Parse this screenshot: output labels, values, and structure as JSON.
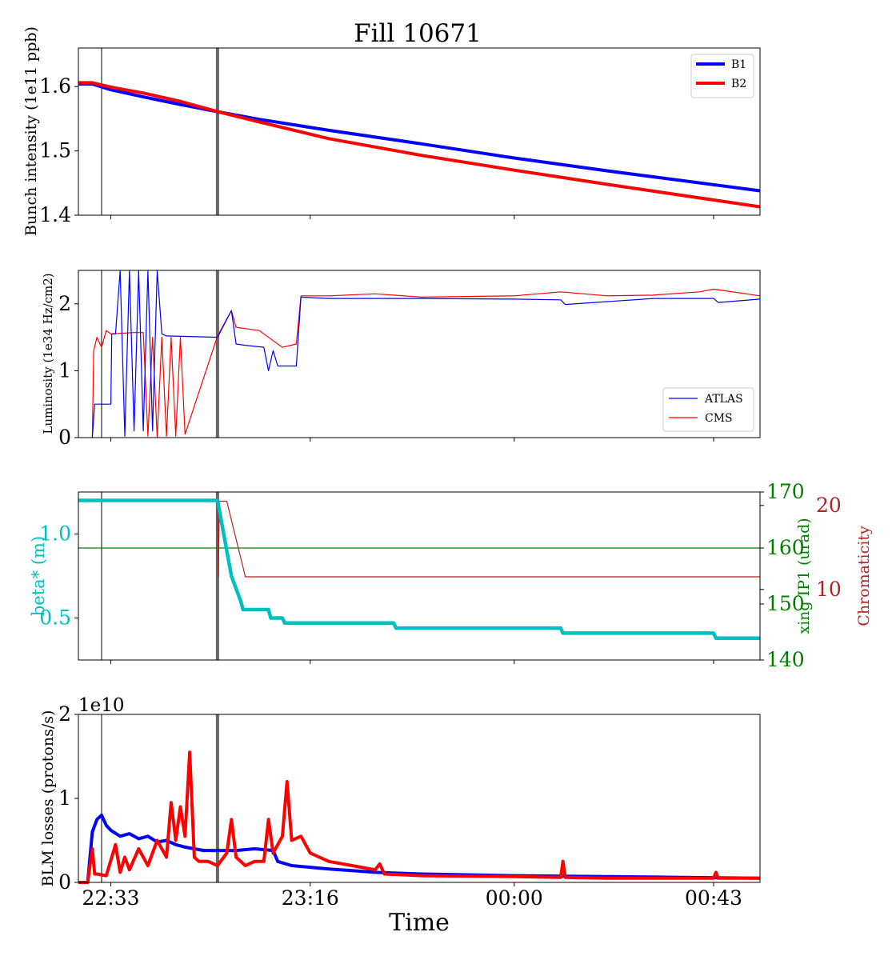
{
  "title": "Fill 10671",
  "xlabel": "Time",
  "x_ticks": [
    "22:33",
    "23:16",
    "00:00",
    "00:43"
  ],
  "colors": {
    "b1": "#0000ff",
    "b2": "#ff0000",
    "atlas": "#0000ff",
    "cms": "#ff0000",
    "beta": "#00bfbf",
    "xing": "#008000",
    "chroma": "#b22222",
    "marker": "#666666"
  },
  "chart_data": [
    {
      "type": "line",
      "ylabel": "Bunch intensity (1e11 ppb)",
      "ylim": [
        1.4,
        1.66
      ],
      "yticks": [
        "1.4",
        "1.5",
        "1.6"
      ],
      "legend": "top-right",
      "series": [
        {
          "name": "B1",
          "x": [
            "22:26",
            "22:29",
            "22:33",
            "22:40",
            "22:48",
            "22:56",
            "23:05",
            "23:20",
            "23:40",
            "00:00",
            "00:20",
            "00:53"
          ],
          "values": [
            1.604,
            1.604,
            1.595,
            1.584,
            1.572,
            1.561,
            1.549,
            1.532,
            1.511,
            1.489,
            1.469,
            1.438
          ]
        },
        {
          "name": "B2",
          "x": [
            "22:26",
            "22:29",
            "22:33",
            "22:40",
            "22:48",
            "22:56",
            "23:05",
            "23:20",
            "23:40",
            "00:00",
            "00:20",
            "00:53"
          ],
          "values": [
            1.606,
            1.606,
            1.599,
            1.59,
            1.577,
            1.561,
            1.545,
            1.519,
            1.493,
            1.47,
            1.448,
            1.413
          ]
        }
      ]
    },
    {
      "type": "line",
      "ylabel": "Luminosity (1e34 Hz/cm2)",
      "ylim": [
        0,
        2.5
      ],
      "yticks": [
        "0",
        "1",
        "2"
      ],
      "legend": "bottom-right",
      "series": [
        {
          "name": "ATLAS",
          "x": [
            "22:29",
            "22:29.5",
            "22:30",
            "22:33",
            "22:33.2",
            "22:34",
            "22:35",
            "22:36",
            "22:37",
            "22:38",
            "22:39",
            "22:40",
            "22:41",
            "22:42",
            "22:43",
            "22:44",
            "22:45",
            "22:56",
            "22:59",
            "23:00",
            "23:02",
            "23:06",
            "23:07",
            "23:08",
            "23:09",
            "23:13",
            "23:14",
            "23:20",
            "23:40",
            "00:00",
            "00:10",
            "00:11",
            "00:30",
            "00:43",
            "00:44",
            "00:53"
          ],
          "values": [
            0,
            0.5,
            0.5,
            0.5,
            1.55,
            1.55,
            2.5,
            0.02,
            2.5,
            0.1,
            2.5,
            0.1,
            2.5,
            0.1,
            2.5,
            1.55,
            1.52,
            1.5,
            1.9,
            1.4,
            1.38,
            1.35,
            1.0,
            1.3,
            1.07,
            1.07,
            2.1,
            2.08,
            2.08,
            2.07,
            2.06,
            1.99,
            2.08,
            2.08,
            2.02,
            2.07
          ]
        },
        {
          "name": "CMS",
          "x": [
            "22:29",
            "22:29.3",
            "22:30",
            "22:31",
            "22:32",
            "22:33",
            "22:38",
            "22:40",
            "22:41",
            "22:42",
            "22:43",
            "22:44",
            "22:45",
            "22:46",
            "22:47",
            "22:48",
            "22:49",
            "22:56",
            "22:59",
            "23:00",
            "23:05",
            "23:08",
            "23:10",
            "23:13",
            "23:14",
            "23:20",
            "23:30",
            "23:40",
            "00:00",
            "00:10",
            "00:20",
            "00:30",
            "00:40",
            "00:43",
            "00:53"
          ],
          "values": [
            0,
            1.3,
            1.5,
            1.35,
            1.6,
            1.55,
            1.57,
            1.57,
            0.02,
            1.5,
            0.0,
            1.5,
            0.02,
            1.5,
            0.02,
            1.5,
            0.05,
            1.52,
            1.9,
            1.65,
            1.6,
            1.45,
            1.35,
            1.4,
            2.12,
            2.12,
            2.15,
            2.1,
            2.12,
            2.18,
            2.12,
            2.13,
            2.18,
            2.22,
            2.12
          ]
        }
      ]
    },
    {
      "type": "line",
      "ylabel": "beta* (m)",
      "ylabel_right": "xing IP1 (urad)",
      "ylabel_right2": "Chromaticity",
      "yticks": [
        "0.5",
        "1.0"
      ],
      "yticks_right": [
        "140",
        "150",
        "160",
        "170"
      ],
      "yticks_right2": [
        "10",
        "20"
      ],
      "ylim": [
        0.25,
        1.25
      ],
      "ylim_right": [
        140,
        170
      ],
      "ylim_right2": [
        1.6,
        21.6
      ],
      "series": [
        {
          "name": "beta",
          "x": [
            "22:26",
            "22:56",
            "22:57",
            "22:59",
            "23:01",
            "23:01.5",
            "23:07",
            "23:07.5",
            "23:10",
            "23:10.5",
            "23:34",
            "23:34.5",
            "00:10",
            "00:10.5",
            "00:43",
            "00:43.5",
            "00:53"
          ],
          "values": [
            1.2,
            1.2,
            1.05,
            0.75,
            0.6,
            0.55,
            0.55,
            0.5,
            0.5,
            0.47,
            0.47,
            0.44,
            0.44,
            0.41,
            0.41,
            0.38,
            0.38
          ]
        },
        {
          "name": "xing",
          "x": [
            "22:26",
            "00:53"
          ],
          "values": [
            160,
            160
          ]
        },
        {
          "name": "chromaticity",
          "x": [
            "22:26",
            "22:56",
            "22:56.2",
            "22:56.4",
            "22:58",
            "23:02",
            "00:53"
          ],
          "values": [
            20.5,
            20.5,
            11.5,
            20.5,
            20.5,
            11.5,
            11.5
          ]
        }
      ]
    },
    {
      "type": "line",
      "ylabel": "BLM losses (protons/s)",
      "offset_label": "1e10",
      "ylim": [
        0,
        2
      ],
      "yticks": [
        "0",
        "1",
        "2"
      ],
      "series": [
        {
          "name": "B1",
          "x": [
            "22:26",
            "22:28",
            "22:29",
            "22:30",
            "22:31",
            "22:32",
            "22:33",
            "22:35",
            "22:37",
            "22:39",
            "22:41",
            "22:43",
            "22:45",
            "22:47",
            "22:49",
            "22:51",
            "22:53",
            "22:56",
            "23:00",
            "23:04",
            "23:08",
            "23:09",
            "23:12",
            "23:16",
            "23:20",
            "23:25",
            "23:30",
            "23:40",
            "00:00",
            "00:20",
            "00:53"
          ],
          "values": [
            0,
            0,
            0.6,
            0.75,
            0.8,
            0.68,
            0.62,
            0.55,
            0.58,
            0.52,
            0.55,
            0.48,
            0.5,
            0.45,
            0.42,
            0.4,
            0.38,
            0.38,
            0.38,
            0.4,
            0.38,
            0.25,
            0.2,
            0.18,
            0.16,
            0.14,
            0.12,
            0.1,
            0.08,
            0.07,
            0.05
          ]
        },
        {
          "name": "B2",
          "x": [
            "22:26",
            "22:28",
            "22:29",
            "22:29.5",
            "22:30",
            "22:32",
            "22:34",
            "22:35",
            "22:36",
            "22:37",
            "22:39",
            "22:41",
            "22:43",
            "22:45",
            "22:46",
            "22:47",
            "22:48",
            "22:49",
            "22:50",
            "22:51",
            "22:52",
            "22:54",
            "22:56",
            "22:58",
            "22:59",
            "23:00",
            "23:02",
            "23:04",
            "23:06",
            "23:07",
            "23:08",
            "23:10",
            "23:11",
            "23:12",
            "23:14",
            "23:16",
            "23:20",
            "23:25",
            "23:30",
            "23:31",
            "23:32",
            "23:40",
            "00:00",
            "00:10",
            "00:10.5",
            "00:11",
            "00:20",
            "00:43",
            "00:43.5",
            "00:44",
            "00:53"
          ],
          "values": [
            0,
            0,
            0.4,
            0.1,
            0.1,
            0.08,
            0.45,
            0.12,
            0.3,
            0.15,
            0.4,
            0.2,
            0.5,
            0.3,
            0.95,
            0.5,
            0.9,
            0.55,
            1.55,
            0.3,
            0.25,
            0.25,
            0.2,
            0.35,
            0.75,
            0.3,
            0.2,
            0.25,
            0.25,
            0.75,
            0.35,
            0.55,
            1.2,
            0.5,
            0.55,
            0.35,
            0.25,
            0.2,
            0.15,
            0.22,
            0.1,
            0.08,
            0.07,
            0.06,
            0.25,
            0.06,
            0.05,
            0.05,
            0.12,
            0.05,
            0.05
          ]
        }
      ]
    }
  ],
  "markers": {
    "thin_line_x": "22:31",
    "thick_line_x": "22:56"
  }
}
